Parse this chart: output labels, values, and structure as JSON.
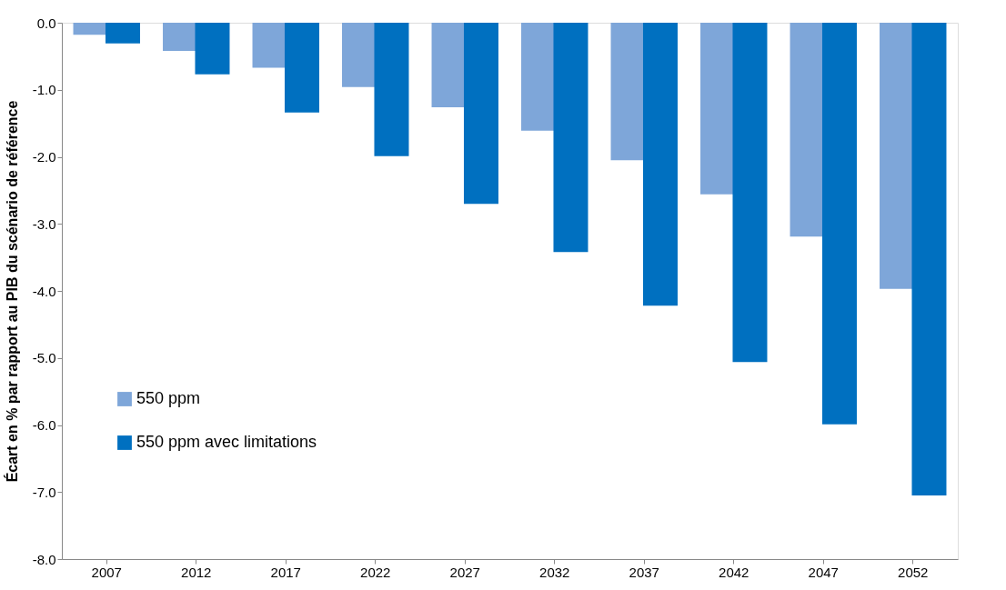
{
  "chart_data": {
    "type": "bar",
    "ylabel": "Écart en % par rapport au PIB du scénario de référence",
    "categories": [
      "2007",
      "2012",
      "2017",
      "2022",
      "2027",
      "2032",
      "2037",
      "2042",
      "2047",
      "2052"
    ],
    "series": [
      {
        "name": "550 ppm",
        "color": "#7ea6d9",
        "values": [
          -0.18,
          -0.42,
          -0.67,
          -0.96,
          -1.26,
          -1.61,
          -2.05,
          -2.56,
          -3.19,
          -3.97
        ]
      },
      {
        "name": "550 ppm avec limitations",
        "color": "#0070c0",
        "values": [
          -0.31,
          -0.77,
          -1.34,
          -1.99,
          -2.7,
          -3.42,
          -4.22,
          -5.06,
          -5.99,
          -7.05
        ]
      }
    ],
    "ylim": [
      -8,
      0
    ],
    "yticks": [
      {
        "value": 0,
        "label": "0.0"
      },
      {
        "value": -1,
        "label": "-1.0"
      },
      {
        "value": -2,
        "label": "-2.0"
      },
      {
        "value": -3,
        "label": "-3.0"
      },
      {
        "value": -4,
        "label": "-4.0"
      },
      {
        "value": -5,
        "label": "-5.0"
      },
      {
        "value": -6,
        "label": "-6.0"
      },
      {
        "value": -7,
        "label": "-7.0"
      },
      {
        "value": -8,
        "label": "-8.0"
      }
    ],
    "grid": false,
    "legend": "bottom left"
  }
}
